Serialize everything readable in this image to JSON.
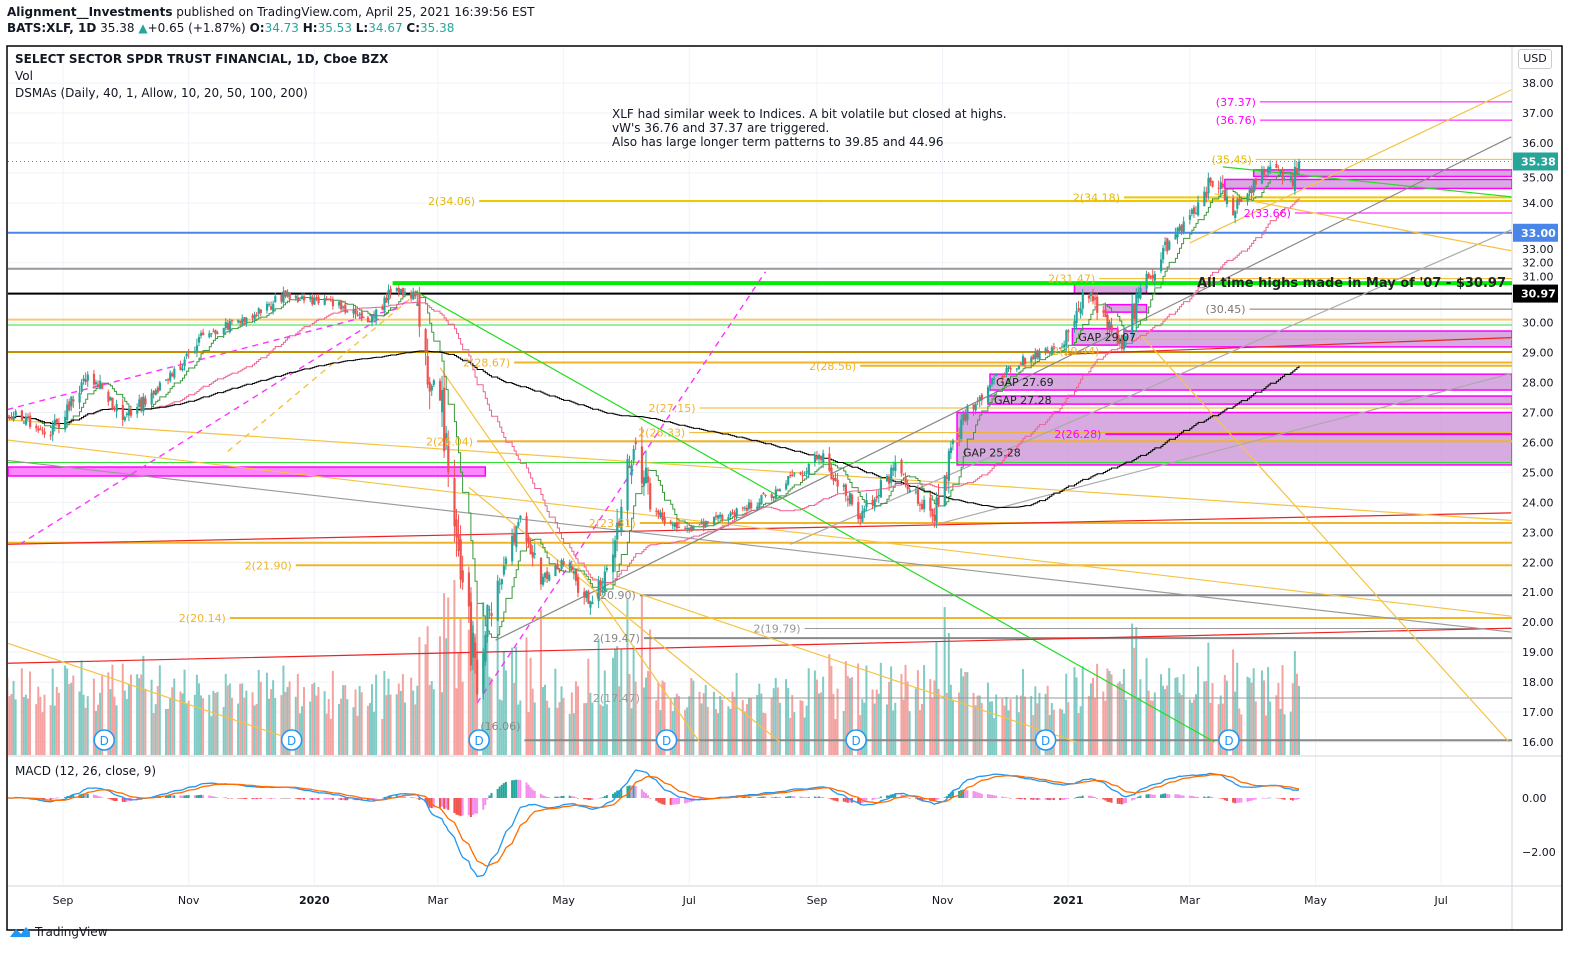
{
  "header": {
    "author": "Alignment__Investments",
    "published": " published on TradingView.com, April 25, 2021 16:39:56 EST",
    "symbol": "BATS:XLF, 1D",
    "last": "35.38",
    "change": "+0.65 (+1.87%)",
    "o_label": "O:",
    "o": "34.73",
    "h_label": "H:",
    "h": "35.53",
    "l_label": "L:",
    "l": "34.67",
    "c_label": "C:",
    "c": "35.38"
  },
  "legend": {
    "title": "SELECT SECTOR SPDR TRUST FINANCIAL, 1D, Cboe BZX",
    "vol": "Vol",
    "dsma": "DSMAs (Daily, 40, 1, Allow, 10, 20, 50, 100, 200)",
    "macd": "MACD (12, 26, close, 9)"
  },
  "note": {
    "line1": "XLF had similar week to Indices.  A bit volatile but closed at highs.",
    "line2": "vW's 36.76 and 37.37 are triggered.",
    "line3": "Also has large longer term patterns to 39.85 and 44.96",
    "ath": "All time highs made in May of '07 - $30.97"
  },
  "currency": "USD",
  "branding": "TradingView",
  "colors": {
    "up": "#26a69a",
    "down": "#ef5350",
    "gold": "#f0b429",
    "magenta": "#ff00ff",
    "gray": "#8c8c8c",
    "blue": "#4a86e8",
    "green": "#00ee00",
    "brown": "#c49000",
    "zone": "#c98fd6"
  },
  "chart_data": {
    "type": "candlestick",
    "price_axis": {
      "min": 16,
      "max": 38,
      "ticks": [
        "16.00",
        "17.00",
        "18.00",
        "19.00",
        "20.00",
        "21.00",
        "22.00",
        "23.00",
        "24.00",
        "25.00",
        "26.00",
        "27.00",
        "28.00",
        "29.00",
        "30.00",
        "31.00",
        "32.00",
        "33.00",
        "34.00",
        "35.00",
        "36.00",
        "37.00",
        "38.00"
      ]
    },
    "macd_axis": {
      "ticks": [
        {
          "v": 0,
          "label": "0.00"
        },
        {
          "v": -2,
          "label": "−2.00"
        }
      ]
    },
    "time_ticks": [
      {
        "label": "Sep",
        "date": "2019-09-01"
      },
      {
        "label": "Nov",
        "date": "2019-11-01"
      },
      {
        "label": "2020",
        "date": "2020-01-01",
        "bold": true
      },
      {
        "label": "Mar",
        "date": "2020-03-01"
      },
      {
        "label": "May",
        "date": "2020-05-01"
      },
      {
        "label": "Jul",
        "date": "2020-07-01"
      },
      {
        "label": "Sep",
        "date": "2020-09-01"
      },
      {
        "label": "Nov",
        "date": "2020-11-01"
      },
      {
        "label": "2021",
        "date": "2021-01-01",
        "bold": true
      },
      {
        "label": "Mar",
        "date": "2021-03-01"
      },
      {
        "label": "May",
        "date": "2021-05-01"
      },
      {
        "label": "Jul",
        "date": "2021-07-01"
      }
    ],
    "close_path": [
      [
        "2019-08-05",
        27.0
      ],
      [
        "2019-08-26",
        26.3
      ],
      [
        "2019-09-14",
        28.3
      ],
      [
        "2019-10-01",
        26.8
      ],
      [
        "2019-10-25",
        28.3
      ],
      [
        "2019-11-06",
        29.5
      ],
      [
        "2019-12-01",
        30.2
      ],
      [
        "2019-12-18",
        30.9
      ],
      [
        "2020-01-13",
        30.6
      ],
      [
        "2020-01-28",
        30.0
      ],
      [
        "2020-02-09",
        31.1
      ],
      [
        "2020-02-19",
        30.9
      ],
      [
        "2020-02-26",
        28.0
      ],
      [
        "2020-03-02",
        27.5
      ],
      [
        "2020-03-07",
        24.5
      ],
      [
        "2020-03-12",
        21.5
      ],
      [
        "2020-03-20",
        18.0
      ],
      [
        "2020-03-24",
        20.0
      ],
      [
        "2020-03-31",
        21.5
      ],
      [
        "2020-04-10",
        23.2
      ],
      [
        "2020-04-20",
        21.5
      ],
      [
        "2020-05-02",
        22.0
      ],
      [
        "2020-05-14",
        20.5
      ],
      [
        "2020-05-23",
        22.0
      ],
      [
        "2020-06-05",
        26.6
      ],
      [
        "2020-06-11",
        24.0
      ],
      [
        "2020-06-27",
        23.0
      ],
      [
        "2020-07-06",
        23.2
      ],
      [
        "2020-08-04",
        24.0
      ],
      [
        "2020-08-24",
        25.0
      ],
      [
        "2020-09-02",
        25.6
      ],
      [
        "2020-09-22",
        23.5
      ],
      [
        "2020-10-09",
        25.2
      ],
      [
        "2020-10-28",
        23.4
      ],
      [
        "2020-11-09",
        26.6
      ],
      [
        "2020-11-22",
        27.8
      ],
      [
        "2020-12-06",
        28.6
      ],
      [
        "2020-12-30",
        29.3
      ],
      [
        "2021-01-09",
        31.1
      ],
      [
        "2021-01-26",
        29.2
      ],
      [
        "2021-02-05",
        31.0
      ],
      [
        "2021-02-17",
        32.4
      ],
      [
        "2021-03-06",
        34.0
      ],
      [
        "2021-03-13",
        35.0
      ],
      [
        "2021-03-21",
        33.7
      ],
      [
        "2021-03-28",
        34.2
      ],
      [
        "2021-04-09",
        35.2
      ],
      [
        "2021-04-19",
        34.7
      ],
      [
        "2021-04-23",
        35.38
      ]
    ],
    "moving_averages": [
      {
        "period": 10,
        "color": "#3c9a3c"
      },
      {
        "period": 50,
        "color": "#f06292"
      },
      {
        "period": 200,
        "color": "#000000"
      }
    ],
    "levels": [
      {
        "price": 37.37,
        "color": "#ff00ff",
        "label": "(37.37)",
        "from": "2021-04-04",
        "w": 1
      },
      {
        "price": 36.76,
        "color": "#ff00ff",
        "label": "(36.76)",
        "from": "2021-04-04",
        "w": 1
      },
      {
        "price": 35.45,
        "color": "#f0c800",
        "label": "(35.45)",
        "from": "2021-04-02",
        "w": 1
      },
      {
        "price": 34.18,
        "color": "#f0c800",
        "label": "2(34.18)",
        "from": "2021-01-28",
        "w": 2
      },
      {
        "price": 34.06,
        "color": "#f0c800",
        "label": "2(34.06)",
        "from": "2020-03-21",
        "w": 2
      },
      {
        "price": 33.66,
        "color": "#ff00ff",
        "label": "2(33.66)",
        "from": "2021-04-21",
        "w": 1
      },
      {
        "price": 33.0,
        "color": "#4a86e8",
        "label": "",
        "from": "2019-08-01",
        "w": 2
      },
      {
        "price": 31.8,
        "color": "#999999",
        "label": "",
        "from": "2019-08-01",
        "w": 2
      },
      {
        "price": 31.47,
        "color": "#f0b429",
        "label": "2(31.47)",
        "from": "2021-01-16",
        "w": 1
      },
      {
        "price": 31.32,
        "color": "#00ee00",
        "label": "",
        "from": "2020-02-08",
        "w": 4
      },
      {
        "price": 30.97,
        "color": "#000000",
        "label": "",
        "from": "2019-08-01",
        "w": 2
      },
      {
        "price": 30.45,
        "color": "#777777",
        "label": "(30.45)",
        "from": "2021-03-30",
        "w": 1
      },
      {
        "price": 30.1,
        "color": "#f7c96b",
        "label": "",
        "from": "2019-08-01",
        "w": 2
      },
      {
        "price": 29.92,
        "color": "#33dd33",
        "label": "",
        "from": "2019-08-01",
        "w": 1
      },
      {
        "price": 29.44,
        "color": "#f0b429",
        "label": "2(29.44)",
        "from": "2021-01-18",
        "w": 1
      },
      {
        "price": 29.02,
        "color": "#c49000",
        "label": "",
        "from": "2019-08-01",
        "w": 2
      },
      {
        "price": 28.67,
        "color": "#f0b429",
        "label": "2(28.67)",
        "from": "2020-04-07",
        "w": 2
      },
      {
        "price": 28.56,
        "color": "#f0b429",
        "label": "2(28.56)",
        "from": "2020-09-22",
        "w": 2
      },
      {
        "price": 27.15,
        "color": "#f0b429",
        "label": "2(27.15)",
        "from": "2020-07-06",
        "w": 1
      },
      {
        "price": 26.33,
        "color": "#f0b429",
        "label": "2(26.33)",
        "from": "2020-07-01",
        "w": 1
      },
      {
        "price": 26.28,
        "color": "#ff00ff",
        "label": "2(26.28)",
        "from": "2021-01-19",
        "w": 2
      },
      {
        "price": 26.04,
        "color": "#f0b429",
        "label": "2(26.04)",
        "from": "2020-03-20",
        "w": 2
      },
      {
        "price": 25.33,
        "color": "#33dd33",
        "label": "",
        "from": "2019-08-01",
        "w": 1
      },
      {
        "price": 23.31,
        "color": "#f0b429",
        "label": "2(23.31)",
        "from": "2020-06-07",
        "w": 2
      },
      {
        "price": 22.65,
        "color": "#f0b429",
        "label": "",
        "from": "2019-08-01",
        "w": 2
      },
      {
        "price": 21.9,
        "color": "#f0b429",
        "label": "2(21.90)",
        "from": "2019-12-23",
        "w": 2
      },
      {
        "price": 20.9,
        "color": "#888888",
        "label": "(20.90)",
        "from": "2020-06-07",
        "w": 2
      },
      {
        "price": 20.14,
        "color": "#f0b429",
        "label": "2(20.14)",
        "from": "2019-11-21",
        "w": 2
      },
      {
        "price": 19.79,
        "color": "#999999",
        "label": "2(19.79)",
        "from": "2020-08-26",
        "w": 1
      },
      {
        "price": 19.47,
        "color": "#888888",
        "label": "2(19.47)",
        "from": "2020-06-09",
        "w": 2
      },
      {
        "price": 17.47,
        "color": "#999999",
        "label": "2(17.47)",
        "from": "2020-06-09",
        "w": 1
      },
      {
        "price": 16.06,
        "color": "#888888",
        "label": "(16.06)",
        "from": "2020-04-12",
        "w": 2
      }
    ],
    "zones": [
      {
        "top": 25.18,
        "bottom": 24.88,
        "from": "2019-08-01",
        "to": "2020-03-24",
        "label": "",
        "solid": true
      },
      {
        "top": 27.0,
        "bottom": 25.25,
        "from": "2020-11-08",
        "to": "",
        "label": "GAP 25.28"
      },
      {
        "top": 27.55,
        "bottom": 27.28,
        "from": "2020-11-23",
        "to": "",
        "label": "GAP 27.28"
      },
      {
        "top": 28.28,
        "bottom": 27.75,
        "from": "2020-11-24",
        "to": "",
        "label": "GAP 27.69"
      },
      {
        "top": 29.8,
        "bottom": 29.25,
        "from": "2021-01-03",
        "to": "2021-01-25",
        "label": "GAP 29.07"
      },
      {
        "top": 29.72,
        "bottom": 29.19,
        "from": "2021-01-28",
        "to": "",
        "label": ""
      },
      {
        "top": 31.3,
        "bottom": 30.98,
        "from": "2021-01-04",
        "to": "2021-02-08",
        "label": ""
      },
      {
        "top": 30.6,
        "bottom": 30.35,
        "from": "2021-01-19",
        "to": "2021-02-08",
        "label": ""
      },
      {
        "top": 35.1,
        "bottom": 34.88,
        "from": "2021-04-01",
        "to": "",
        "label": ""
      },
      {
        "top": 34.78,
        "bottom": 34.48,
        "from": "2021-03-18",
        "to": "",
        "label": ""
      }
    ],
    "trendlines": [
      {
        "from": [
          "2020-02-19",
          31.05
        ],
        "to": [
          "2021-03-13",
          16.0
        ],
        "color": "#22dd22"
      },
      {
        "from": [
          "2021-03-17",
          35.2
        ],
        "to": [
          "2021-08-04",
          34.2
        ],
        "color": "#22dd22"
      },
      {
        "from": [
          "2019-08-05",
          22.6
        ],
        "to": [
          "2021-08-04",
          23.65
        ],
        "color": "#ee2222"
      },
      {
        "from": [
          "2019-08-05",
          18.63
        ],
        "to": [
          "2021-08-04",
          19.8
        ],
        "color": "#ee2222"
      },
      {
        "from": [
          "2021-01-01",
          28.95
        ],
        "to": [
          "2021-08-04",
          29.5
        ],
        "color": "#ee2222"
      },
      {
        "from": [
          "2019-08-05",
          25.4
        ],
        "to": [
          "2021-08-04",
          19.67
        ],
        "color": "#999999"
      },
      {
        "from": [
          "2020-03-29",
          19.4
        ],
        "to": [
          "2021-08-04",
          36.2
        ],
        "color": "#888888"
      },
      {
        "from": [
          "2020-08-19",
          22.6
        ],
        "to": [
          "2021-08-04",
          33.1
        ],
        "color": "#aaaaaa"
      },
      {
        "from": [
          "2020-10-31",
          23.3
        ],
        "to": [
          "2021-08-04",
          28.3
        ],
        "color": "#aaaaaa"
      },
      {
        "from": [
          "2021-03-01",
          32.66
        ],
        "to": [
          "2021-08-04",
          37.77
        ],
        "color": "#f5c342"
      },
      {
        "from": [
          "2021-03-13",
          34.3
        ],
        "to": [
          "2021-08-04",
          32.4
        ],
        "color": "#f5c342"
      },
      {
        "from": [
          "2020-03-02",
          28.5
        ],
        "to": [
          "2020-07-06",
          16.0
        ],
        "color": "#f5c342"
      },
      {
        "from": [
          "2021-02-05",
          29.6
        ],
        "to": [
          "2021-08-03",
          16.0
        ],
        "color": "#f5c342"
      },
      {
        "from": [
          "2019-08-05",
          19.3
        ],
        "to": [
          "2019-12-25",
          16.0
        ],
        "color": "#f5c342"
      },
      {
        "from": [
          "2019-08-05",
          26.08
        ],
        "to": [
          "2021-08-04",
          20.2
        ],
        "color": "#f5c342"
      },
      {
        "from": [
          "2019-08-05",
          26.75
        ],
        "to": [
          "2021-08-04",
          23.4
        ],
        "color": "#f5c342"
      },
      {
        "from": [
          "2020-05-14",
          21.5
        ],
        "to": [
          "2021-01-05",
          16.0
        ],
        "color": "#f5c342"
      },
      {
        "from": [
          "2020-03-16",
          24.5
        ],
        "to": [
          "2020-08-14",
          16.0
        ],
        "color": "#f5c342"
      },
      {
        "from": [
          "2019-08-05",
          27.1
        ],
        "to": [
          "2020-02-12",
          30.5
        ],
        "color": "#ff33ff",
        "dash": true
      },
      {
        "from": [
          "2019-08-11",
          22.6
        ],
        "to": [
          "2020-02-17",
          30.8
        ],
        "color": "#ff33ff",
        "dash": true
      },
      {
        "from": [
          "2020-03-20",
          17.3
        ],
        "to": [
          "2020-08-07",
          31.7
        ],
        "color": "#ff33ff",
        "dash": true
      },
      {
        "from": [
          "2019-11-20",
          25.7
        ],
        "to": [
          "2020-02-20",
          31.0
        ],
        "color": "#f5c342",
        "dash": true
      }
    ],
    "dividends": [
      "2019-09-21",
      "2019-12-21",
      "2020-03-21",
      "2020-06-20",
      "2020-09-20",
      "2020-12-21",
      "2021-03-20"
    ],
    "dividend_label": "D",
    "price_tags": [
      {
        "value": 35.38,
        "label": "35.38",
        "color": "#26a69a"
      },
      {
        "value": 33.0,
        "label": "33.00",
        "color": "#4a86e8"
      },
      {
        "value": 30.97,
        "label": "30.97",
        "color": "#000000"
      }
    ]
  }
}
